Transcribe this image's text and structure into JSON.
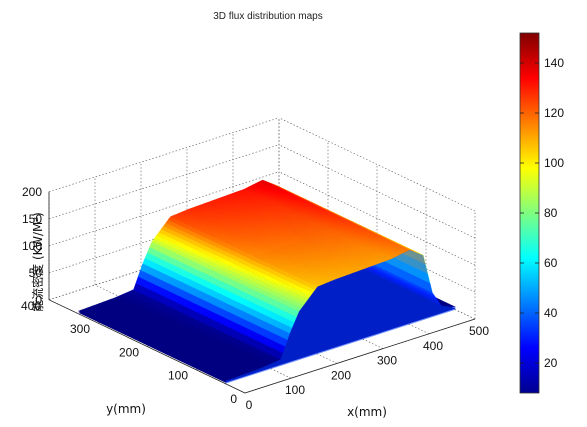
{
  "chart_data": {
    "type": "surface",
    "title": "3D flux distribution maps",
    "xlabel": "x(mm)",
    "ylabel": "y(mm)",
    "zlabel": "能流密度 (KW/M²)",
    "x_range": [
      0,
      500
    ],
    "y_range": [
      0,
      400
    ],
    "z_range": [
      0,
      200
    ],
    "x_ticks": [
      "0",
      "100",
      "200",
      "300",
      "400",
      "500"
    ],
    "y_ticks": [
      "0",
      "100",
      "200",
      "300",
      "400"
    ],
    "z_ticks": [
      "0",
      "50",
      "100",
      "150",
      "200"
    ],
    "colorbar": {
      "min": 8,
      "max": 152,
      "ticks": [
        "20",
        "40",
        "60",
        "80",
        "100",
        "120",
        "140"
      ],
      "colormap": "jet"
    },
    "grid": true,
    "profile": {
      "description_fields": [
        "x_mm",
        "flux"
      ],
      "x": [
        0,
        80,
        120,
        140,
        160,
        200,
        240,
        300,
        360,
        400,
        430,
        450,
        470,
        500
      ],
      "flux": [
        5,
        8,
        12,
        55,
        90,
        125,
        128,
        130,
        132,
        138,
        120,
        45,
        15,
        5
      ],
      "y_extent_mm": [
        40,
        340
      ]
    }
  }
}
